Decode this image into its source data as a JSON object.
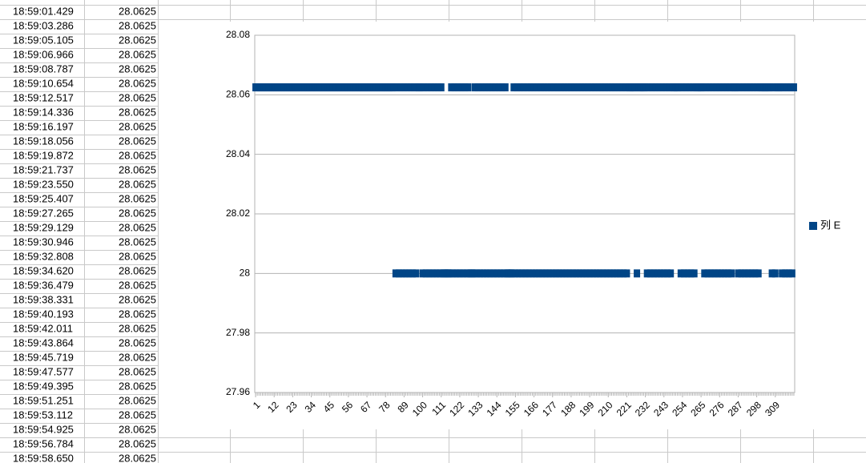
{
  "table": {
    "rows": [
      [
        "18:59:01.429",
        28.0625
      ],
      [
        "18:59:03.286",
        28.0625
      ],
      [
        "18:59:05.105",
        28.0625
      ],
      [
        "18:59:06.966",
        28.0625
      ],
      [
        "18:59:08.787",
        28.0625
      ],
      [
        "18:59:10.654",
        28.0625
      ],
      [
        "18:59:12.517",
        28.0625
      ],
      [
        "18:59:14.336",
        28.0625
      ],
      [
        "18:59:16.197",
        28.0625
      ],
      [
        "18:59:18.056",
        28.0625
      ],
      [
        "18:59:19.872",
        28.0625
      ],
      [
        "18:59:21.737",
        28.0625
      ],
      [
        "18:59:23.550",
        28.0625
      ],
      [
        "18:59:25.407",
        28.0625
      ],
      [
        "18:59:27.265",
        28.0625
      ],
      [
        "18:59:29.129",
        28.0625
      ],
      [
        "18:59:30.946",
        28.0625
      ],
      [
        "18:59:32.808",
        28.0625
      ],
      [
        "18:59:34.620",
        28.0625
      ],
      [
        "18:59:36.479",
        28.0625
      ],
      [
        "18:59:38.331",
        28.0625
      ],
      [
        "18:59:40.193",
        28.0625
      ],
      [
        "18:59:42.011",
        28.0625
      ],
      [
        "18:59:43.864",
        28.0625
      ],
      [
        "18:59:45.719",
        28.0625
      ],
      [
        "18:59:47.577",
        28.0625
      ],
      [
        "18:59:49.395",
        28.0625
      ],
      [
        "18:59:51.251",
        28.0625
      ],
      [
        "18:59:53.112",
        28.0625
      ],
      [
        "18:59:54.925",
        28.0625
      ],
      [
        "18:59:56.784",
        28.0625
      ],
      [
        "18:59:58.650",
        28.0625
      ]
    ]
  },
  "chart_data": {
    "type": "scatter",
    "legend": "right",
    "grid": true,
    "xlim": [
      0.5,
      320.5
    ],
    "xticks": [
      1,
      12,
      23,
      34,
      45,
      56,
      67,
      78,
      89,
      100,
      111,
      122,
      133,
      144,
      155,
      166,
      177,
      188,
      199,
      210,
      221,
      232,
      243,
      254,
      265,
      276,
      287,
      298,
      309
    ],
    "ylim": [
      27.96,
      28.08
    ],
    "yticks": [
      27.96,
      27.98,
      28,
      28.02,
      28.04,
      28.06,
      28.08
    ],
    "x": [
      1,
      2,
      3,
      4,
      5,
      6,
      7,
      8,
      9,
      10,
      11,
      12,
      13,
      14,
      15,
      16,
      17,
      18,
      19,
      20,
      21,
      22,
      23,
      24,
      25,
      26,
      27,
      28,
      29,
      30,
      31,
      32,
      33,
      34,
      35,
      36,
      37,
      38,
      39,
      40,
      41,
      42,
      43,
      44,
      45,
      46,
      47,
      48,
      49,
      50,
      51,
      52,
      53,
      54,
      55,
      56,
      57,
      58,
      59,
      60,
      61,
      62,
      63,
      64,
      65,
      66,
      67,
      68,
      69,
      70,
      71,
      72,
      73,
      74,
      75,
      76,
      77,
      78,
      79,
      80,
      81,
      82,
      83,
      84,
      85,
      86,
      87,
      88,
      89,
      90,
      91,
      92,
      93,
      94,
      95,
      96,
      97,
      98,
      99,
      100,
      101,
      102,
      103,
      104,
      105,
      106,
      107,
      108,
      109,
      110,
      111,
      112,
      113,
      114,
      115,
      116,
      117,
      118,
      119,
      120,
      121,
      122,
      123,
      124,
      125,
      126,
      127,
      128,
      129,
      130,
      131,
      132,
      133,
      134,
      135,
      136,
      137,
      138,
      139,
      140,
      141,
      142,
      143,
      144,
      145,
      146,
      147,
      148,
      149,
      150,
      151,
      152,
      153,
      154,
      155,
      156,
      157,
      158,
      159,
      160,
      161,
      162,
      163,
      164,
      165,
      166,
      167,
      168,
      169,
      170,
      171,
      172,
      173,
      174,
      175,
      176,
      177,
      178,
      179,
      180,
      181,
      182,
      183,
      184,
      185,
      186,
      187,
      188,
      189,
      190,
      191,
      192,
      193,
      194,
      195,
      196,
      197,
      198,
      199,
      200,
      201,
      202,
      203,
      204,
      205,
      206,
      207,
      208,
      209,
      210,
      211,
      212,
      213,
      214,
      215,
      216,
      217,
      218,
      219,
      220,
      221,
      222,
      223,
      224,
      225,
      226,
      227,
      228,
      229,
      230,
      231,
      232,
      233,
      234,
      235,
      236,
      237,
      238,
      239,
      240,
      241,
      242,
      243,
      244,
      245,
      246,
      247,
      248,
      249,
      250,
      251,
      252,
      253,
      254,
      255,
      256,
      257,
      258,
      259,
      260,
      261,
      262,
      263,
      264,
      265,
      266,
      267,
      268,
      269,
      270,
      271,
      272,
      273,
      274,
      275,
      276,
      277,
      278,
      279,
      280,
      281,
      282,
      283,
      284,
      285,
      286,
      287,
      288,
      289,
      290,
      291,
      292,
      293,
      294,
      295,
      296,
      297,
      298,
      299,
      300,
      301,
      302,
      303,
      304,
      305,
      306,
      307,
      308,
      309,
      310,
      311,
      312,
      313,
      314,
      315,
      316,
      317,
      318,
      319,
      320
    ],
    "series": [
      {
        "name": "列 E",
        "color": "#004586",
        "values": [
          28.0625,
          28.0625,
          28.0625,
          28.0625,
          28.0625,
          28.0625,
          28.0625,
          28.0625,
          28.0625,
          28.0625,
          28.0625,
          28.0625,
          28.0625,
          28.0625,
          28.0625,
          28.0625,
          28.0625,
          28.0625,
          28.0625,
          28.0625,
          28.0625,
          28.0625,
          28.0625,
          28.0625,
          28.0625,
          28.0625,
          28.0625,
          28.0625,
          28.0625,
          28.0625,
          28.0625,
          28.0625,
          28.0625,
          28.0625,
          28.0625,
          28.0625,
          28.0625,
          28.0625,
          28.0625,
          28.0625,
          28.0625,
          28.0625,
          28.0625,
          28.0625,
          28.0625,
          28.0625,
          28.0625,
          28.0625,
          28.0625,
          28.0625,
          28.0625,
          28.0625,
          28.0625,
          28.0625,
          28.0625,
          28.0625,
          28.0625,
          28.0625,
          28.0625,
          28.0625,
          28.0625,
          28.0625,
          28.0625,
          28.0625,
          28.0625,
          28.0625,
          28.0625,
          28.0625,
          28.0625,
          28.0625,
          28.0625,
          28.0625,
          28.0625,
          28.0625,
          28.0625,
          28.0625,
          28.0625,
          28.0625,
          28.0625,
          28.0625,
          28.0625,
          28.0625,
          28.0625,
          28,
          28.0625,
          28,
          28.0625,
          28,
          28.0625,
          28,
          28.0625,
          28,
          28.0625,
          28,
          28.0625,
          28,
          28.0625,
          28.0625,
          28.0625,
          28,
          28.0625,
          28,
          28.0625,
          28,
          28.0625,
          28,
          28.0625,
          28,
          28.0625,
          28,
          28.0625,
          28,
          28,
          28,
          28,
          28,
          28.0625,
          28,
          28.0625,
          28,
          28.0625,
          28,
          28.0625,
          28,
          28.0625,
          28,
          28.0625,
          28,
          28,
          28,
          28.0625,
          28,
          28.0625,
          28,
          28.0625,
          28,
          28.0625,
          28,
          28.0625,
          28,
          28.0625,
          28,
          28.0625,
          28,
          28.0625,
          28,
          28.0625,
          28,
          28.0625,
          28,
          28,
          28,
          28,
          28.0625,
          28,
          28.0625,
          28,
          28.0625,
          28,
          28.0625,
          28,
          28.0625,
          28,
          28.0625,
          28,
          28.0625,
          28,
          28.0625,
          28,
          28.0625,
          28,
          28.0625,
          28,
          28.0625,
          28,
          28.0625,
          28,
          28.0625,
          28,
          28.0625,
          28,
          28.0625,
          28,
          28.0625,
          28,
          28.0625,
          28,
          28.0625,
          28,
          28.0625,
          28,
          28.0625,
          28,
          28.0625,
          28,
          28.0625,
          28,
          28.0625,
          28,
          28.0625,
          28,
          28.0625,
          28,
          28.0625,
          28,
          28.0625,
          28,
          28.0625,
          28,
          28.0625,
          28,
          28.0625,
          28,
          28.0625,
          28,
          28.0625,
          28,
          28.0625,
          28,
          28.0625,
          28,
          28.0625,
          28.0625,
          28.0625,
          28.0625,
          28.0625,
          28,
          28.0625,
          28.0625,
          28.0625,
          28.0625,
          28.0625,
          28,
          28.0625,
          28,
          28.0625,
          28,
          28.0625,
          28,
          28.0625,
          28,
          28.0625,
          28,
          28.0625,
          28,
          28.0625,
          28,
          28.0625,
          28.0625,
          28.0625,
          28.0625,
          28.0625,
          28,
          28.0625,
          28,
          28.0625,
          28,
          28.0625,
          28,
          28.0625,
          28,
          28.0625,
          28.0625,
          28.0625,
          28.0625,
          28.0625,
          28,
          28.0625,
          28,
          28.0625,
          28,
          28.0625,
          28,
          28.0625,
          28,
          28.0625,
          28,
          28.0625,
          28,
          28.0625,
          28,
          28.0625,
          28,
          28.0625,
          28.0625,
          28.0625,
          28,
          28.0625,
          28,
          28.0625,
          28,
          28.0625,
          28,
          28.0625,
          28,
          28.0625,
          28,
          28.0625,
          28,
          28.0625,
          28.0625,
          28.0625,
          28.0625,
          28.0625,
          28.0625,
          28.0625,
          28,
          28.0625,
          28,
          28.0625,
          28.0625,
          28.0625,
          28,
          28.0625,
          28,
          28.0625,
          28,
          28.0625,
          28,
          28.0625
        ]
      }
    ]
  }
}
